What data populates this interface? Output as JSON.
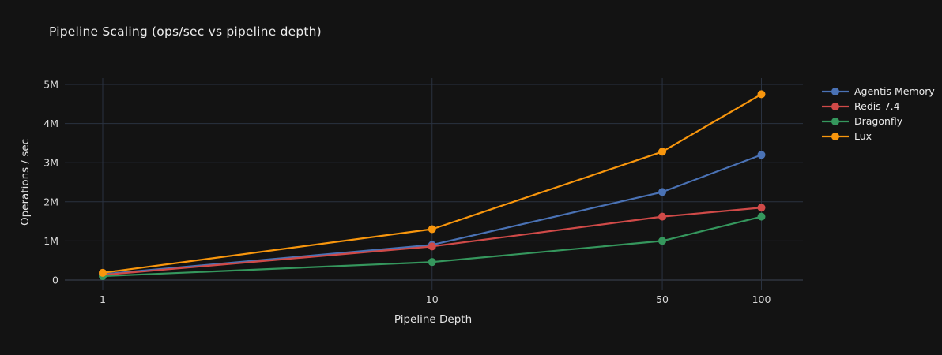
{
  "page": {
    "background": "#131313"
  },
  "theme": {
    "grid_color": "#2a3240",
    "axis_line_color": "#3c4454",
    "tick_label_color": "#d8d8d8",
    "title_color": "#ececec",
    "dot_radius": 5,
    "line_width": 2.2
  },
  "chart_data": {
    "type": "line",
    "title": "Pipeline Scaling (ops/sec vs pipeline depth)",
    "xlabel": "Pipeline Depth",
    "ylabel": "Operations / sec",
    "x_scale": "log",
    "grid": true,
    "legend_position": "right",
    "x": [
      1,
      10,
      50,
      100
    ],
    "x_tick_labels": [
      "1",
      "10",
      "50",
      "100"
    ],
    "y_ticks": [
      0,
      1000000,
      2000000,
      3000000,
      4000000,
      5000000
    ],
    "y_tick_labels": [
      "0",
      "1M",
      "2M",
      "3M",
      "4M",
      "5M"
    ],
    "ylim": [
      0,
      5000000
    ],
    "series": [
      {
        "name": "Agentis Memory",
        "color": "#4a72b5",
        "values": [
          150000,
          900000,
          2250000,
          3200000
        ]
      },
      {
        "name": "Redis 7.4",
        "color": "#d04a48",
        "values": [
          130000,
          860000,
          1620000,
          1850000
        ]
      },
      {
        "name": "Dragonfly",
        "color": "#35975d",
        "values": [
          100000,
          460000,
          1000000,
          1620000
        ]
      },
      {
        "name": "Lux",
        "color": "#f8960d",
        "values": [
          185000,
          1300000,
          3280000,
          4750000
        ]
      }
    ]
  }
}
